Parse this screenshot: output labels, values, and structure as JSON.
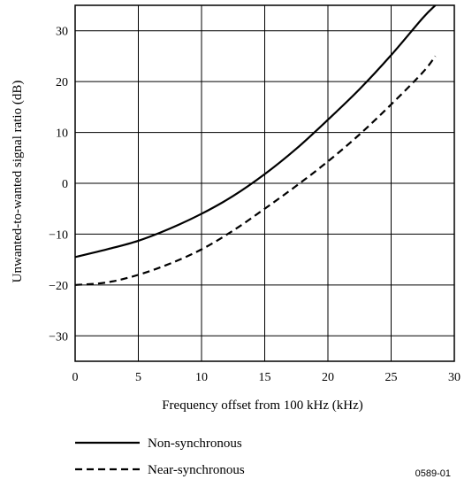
{
  "chart_data": {
    "type": "line",
    "xlabel": "Frequency offset from 100 kHz (kHz)",
    "ylabel": "Unwanted-to-wanted signal ratio (dB)",
    "xlim": [
      0,
      30
    ],
    "ylim": [
      -35,
      35
    ],
    "xticks": [
      "0",
      "5",
      "10",
      "15",
      "20",
      "25",
      "30"
    ],
    "yticks": [
      "30",
      "20",
      "10",
      "0",
      "-10",
      "-20",
      "-30"
    ],
    "grid": true,
    "legend_position": "bottom-left",
    "series": [
      {
        "name": "Non-synchronous",
        "style": "solid",
        "x": [
          0,
          2.5,
          5,
          7.5,
          10,
          12.5,
          15,
          17.5,
          20,
          22.5,
          25,
          27.5,
          28.5
        ],
        "y": [
          -14.5,
          -13,
          -11.3,
          -8.9,
          -6,
          -2.5,
          1.8,
          6.8,
          12.5,
          18.5,
          25.2,
          32.5,
          35
        ]
      },
      {
        "name": "Near-synchronous",
        "style": "dashed",
        "x": [
          0,
          2.5,
          5,
          7.5,
          10,
          12.5,
          15,
          17.5,
          20,
          22.5,
          25,
          27.5,
          28.5
        ],
        "y": [
          -20,
          -19.5,
          -18,
          -15.8,
          -13,
          -9.3,
          -5,
          -0.5,
          4.3,
          9.6,
          15.5,
          21.8,
          25
        ]
      }
    ]
  },
  "figure_id": "0589-01"
}
